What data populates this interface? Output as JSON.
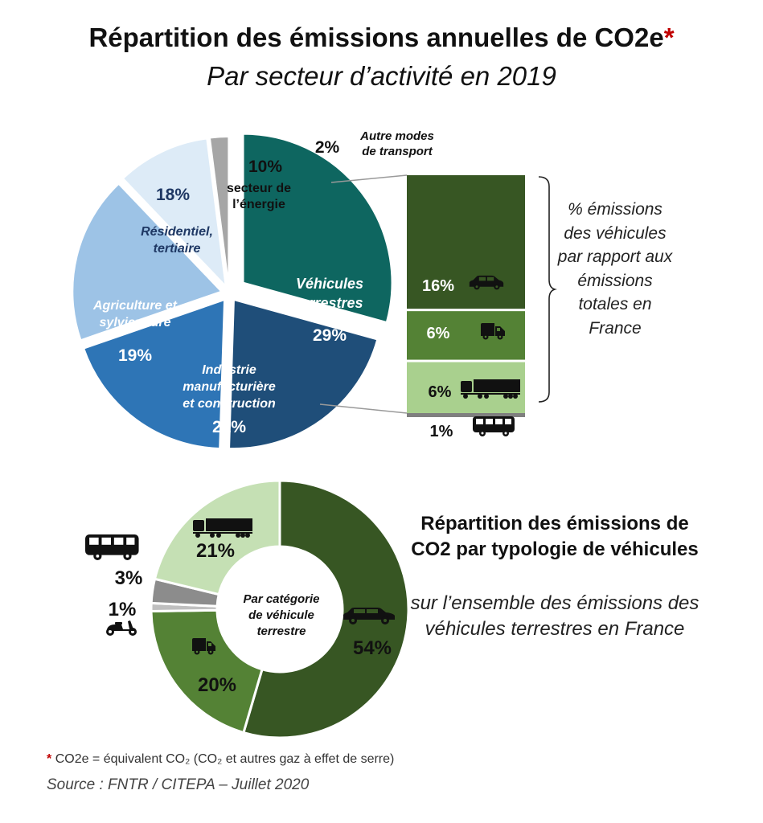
{
  "header": {
    "title": "Répartition des émissions annuelles de CO2e",
    "title_star": "*",
    "subtitle": "Par secteur d’activité en 2019"
  },
  "chart_data": [
    {
      "type": "pie",
      "slices": [
        {
          "label": "Véhicules terrestres",
          "value": 29,
          "color": "#0e6660"
        },
        {
          "label": "Industrie manufacturière et construction",
          "value": 21,
          "color": "#1f4e79"
        },
        {
          "label": "Agriculture et sylviculture",
          "value": 19,
          "color": "#2e75b6"
        },
        {
          "label": "Résidentiel, tertiaire",
          "value": 18,
          "color": "#9dc3e6"
        },
        {
          "label": "secteur de l’énergie",
          "value": 10,
          "color": "#ddebf7"
        },
        {
          "label": "Autre modes de transport",
          "value": 2,
          "color": "#a6a6a6"
        }
      ],
      "percent_labels": [
        "29%",
        "21%",
        "19%",
        "18%",
        "10%",
        "2%"
      ]
    },
    {
      "type": "bar",
      "stacked": true,
      "categories": [
        "voitures",
        "utilitaires",
        "poids lourds",
        "bus"
      ],
      "values": [
        16,
        6,
        6,
        1
      ],
      "percent_labels": [
        "16%",
        "6%",
        "6%",
        "1%"
      ],
      "colors": [
        "#375623",
        "#548235",
        "#a9d08e",
        "#7f7f7f"
      ],
      "bracket_label": "% émissions des véhicules par rapport aux émissions totales en France"
    },
    {
      "type": "pie",
      "donut": true,
      "center_label": "Par catégorie de véhicule terrestre",
      "slices": [
        {
          "label": "voitures",
          "value": 54,
          "color": "#375623",
          "icon": "car-icon"
        },
        {
          "label": "utilitaires",
          "value": 20,
          "color": "#548235",
          "icon": "van-icon"
        },
        {
          "label": "deux-roues",
          "value": 1,
          "color": "#bfbfbf",
          "icon": "scooter-icon"
        },
        {
          "label": "bus",
          "value": 3,
          "color": "#8c8c8c",
          "icon": "bus-icon"
        },
        {
          "label": "poids lourds",
          "value": 21,
          "color": "#c5e0b4",
          "icon": "truck-icon"
        }
      ],
      "percent_labels": [
        "54%",
        "20%",
        "1%",
        "3%",
        "21%"
      ]
    }
  ],
  "legend_right": {
    "title": "Répartition des émissions de CO2 par typologie de véhicules",
    "subtitle": "sur l’ensemble des émissions des véhicules terrestres en France"
  },
  "footer": {
    "note_star": "*",
    "note": "CO2e = équivalent CO₂ (CO₂ et autres gaz à effet de serre)",
    "source": "Source : FNTR / CITEPA – Juillet 2020"
  }
}
